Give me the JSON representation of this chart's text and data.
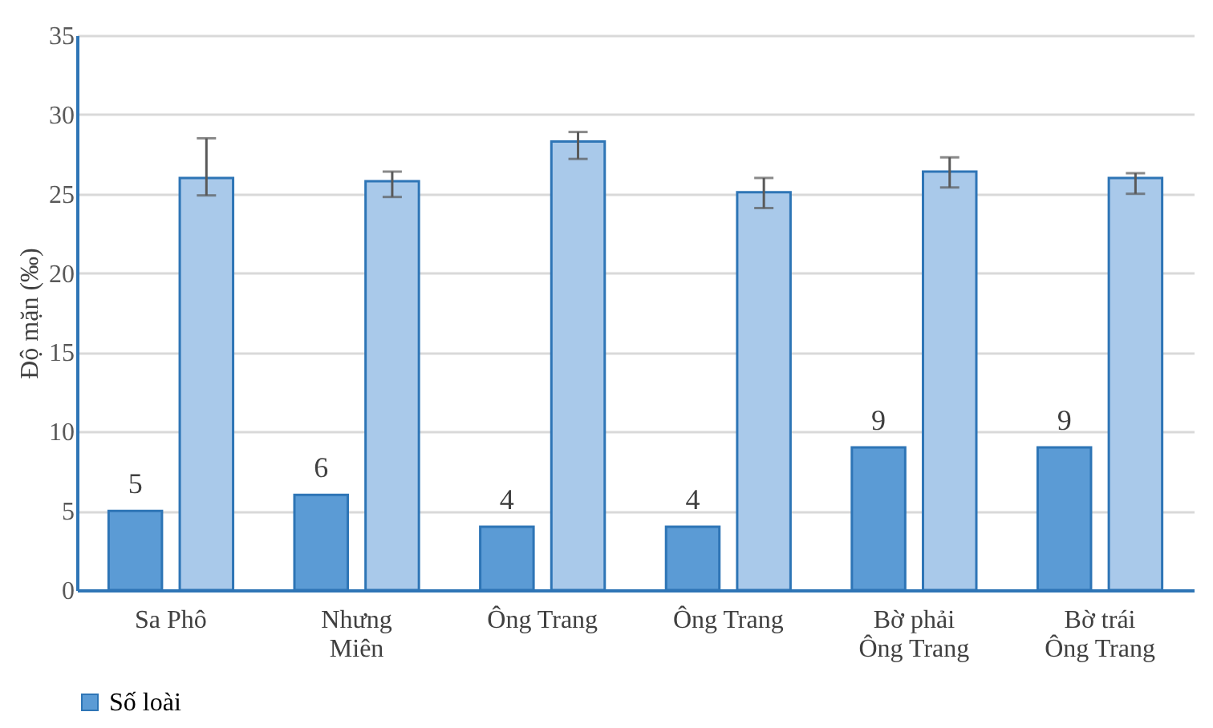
{
  "chart_data": {
    "type": "bar",
    "ylabel": "Độ mặn (‰)",
    "categories": [
      "Sa Phô",
      "Nhưng\nMiên",
      "Ông Trang",
      "Ông Trang",
      "Bờ phải\nÔng Trang",
      "Bờ trái\nÔng Trang"
    ],
    "series": [
      {
        "name": "Số loài",
        "color": "#5b9bd5",
        "values": [
          5,
          6,
          4,
          4,
          9,
          9
        ],
        "value_labels": [
          "5",
          "6",
          "4",
          "4",
          "9",
          "9"
        ]
      },
      {
        "color": "#a9c9ea",
        "values": [
          26.0,
          25.8,
          28.3,
          25.1,
          26.4,
          26.0
        ],
        "errors": [
          [
            24.9,
            28.5
          ],
          [
            24.8,
            26.4
          ],
          [
            27.2,
            28.9
          ],
          [
            24.1,
            26.0
          ],
          [
            25.4,
            27.3
          ],
          [
            25.0,
            26.3
          ]
        ]
      }
    ],
    "ylim": [
      0,
      35
    ],
    "yticks": [
      0,
      5,
      10,
      15,
      20,
      25,
      30,
      35
    ],
    "grid": "y",
    "legend": "bottom"
  }
}
